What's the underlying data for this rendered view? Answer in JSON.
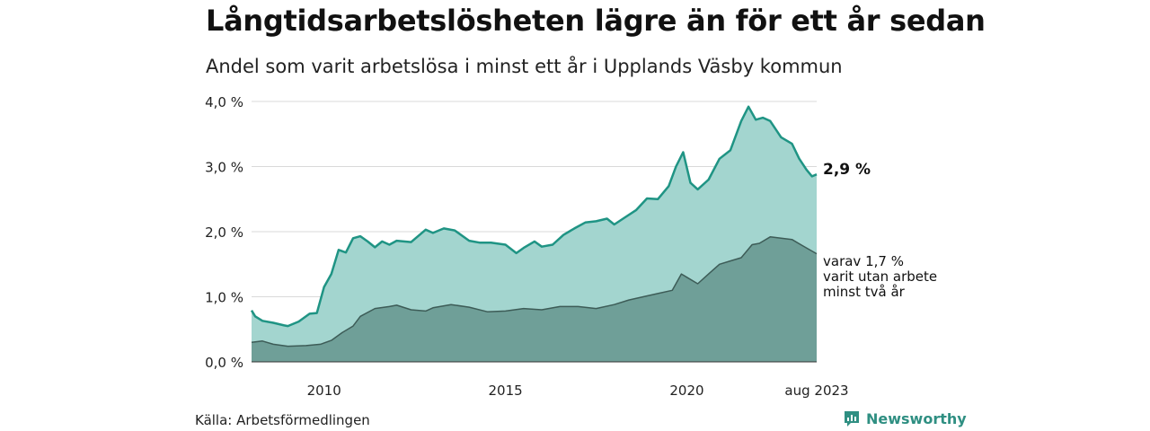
{
  "title": "Långtidsarbetslösheten lägre än för ett år sedan",
  "subtitle": "Andel som varit arbetslösa i minst ett år i Upplands Väsby kommun",
  "source": "Källa: Arbetsförmedlingen",
  "brand": "Newsworthy",
  "colors": {
    "total_fill": "#a3d5cf",
    "total_line": "#1f9484",
    "long_fill": "#6f9f98",
    "long_line": "#3d5c57",
    "grid": "#d9d9d9",
    "brand": "#2f8f82"
  },
  "chart_data": {
    "type": "area",
    "x_unit": "year",
    "xlim": [
      2008.0,
      2023.58
    ],
    "ylim": [
      0,
      4.0
    ],
    "y_ticks": [
      0,
      1,
      2,
      3,
      4
    ],
    "y_tick_labels": [
      "0,0 %",
      "1,0 %",
      "2,0 %",
      "3,0 %",
      "4,0 %"
    ],
    "x_ticks": [
      2010,
      2015,
      2020,
      2023.58
    ],
    "x_tick_labels": [
      "2010",
      "2015",
      "2020",
      "aug 2023"
    ],
    "grid": "horizontal",
    "end_label": "2,9 %",
    "sub_label_lines": [
      "varav 1,7 %",
      "varit utan arbete",
      "minst två år"
    ],
    "series": [
      {
        "key": "total",
        "x": [
          2008.0,
          2008.1,
          2008.3,
          2008.6,
          2008.9,
          2009.0,
          2009.3,
          2009.6,
          2009.8,
          2010.0,
          2010.2,
          2010.4,
          2010.6,
          2010.8,
          2011.0,
          2011.2,
          2011.4,
          2011.6,
          2011.8,
          2012.0,
          2012.4,
          2012.8,
          2013.0,
          2013.3,
          2013.6,
          2014.0,
          2014.3,
          2014.6,
          2015.0,
          2015.3,
          2015.5,
          2015.8,
          2016.0,
          2016.3,
          2016.6,
          2016.9,
          2017.2,
          2017.5,
          2017.8,
          2018.0,
          2018.3,
          2018.6,
          2018.9,
          2019.2,
          2019.5,
          2019.7,
          2019.9,
          2020.1,
          2020.3,
          2020.6,
          2020.9,
          2021.2,
          2021.5,
          2021.7,
          2021.9,
          2022.1,
          2022.3,
          2022.6,
          2022.9,
          2023.1,
          2023.3,
          2023.45,
          2023.58
        ],
        "y": [
          0.79,
          0.7,
          0.63,
          0.6,
          0.56,
          0.55,
          0.62,
          0.74,
          0.75,
          1.15,
          1.35,
          1.72,
          1.68,
          1.9,
          1.93,
          1.85,
          1.76,
          1.85,
          1.8,
          1.86,
          1.84,
          2.03,
          1.98,
          2.05,
          2.02,
          1.86,
          1.83,
          1.83,
          1.8,
          1.67,
          1.75,
          1.85,
          1.77,
          1.8,
          1.95,
          2.05,
          2.14,
          2.16,
          2.2,
          2.11,
          2.22,
          2.33,
          2.51,
          2.5,
          2.7,
          3.0,
          3.22,
          2.75,
          2.65,
          2.8,
          3.12,
          3.25,
          3.7,
          3.92,
          3.72,
          3.75,
          3.7,
          3.45,
          3.35,
          3.12,
          2.95,
          2.85,
          2.88
        ]
      },
      {
        "key": "long",
        "x": [
          2008.0,
          2008.3,
          2008.6,
          2009.0,
          2009.5,
          2009.9,
          2010.2,
          2010.5,
          2010.8,
          2011.0,
          2011.4,
          2011.8,
          2012.0,
          2012.4,
          2012.8,
          2013.0,
          2013.5,
          2014.0,
          2014.5,
          2015.0,
          2015.5,
          2016.0,
          2016.5,
          2017.0,
          2017.5,
          2018.0,
          2018.4,
          2018.8,
          2019.2,
          2019.6,
          2019.85,
          2020.0,
          2020.3,
          2020.6,
          2020.9,
          2021.2,
          2021.5,
          2021.8,
          2022.0,
          2022.3,
          2022.6,
          2022.9,
          2023.2,
          2023.58
        ],
        "y": [
          0.3,
          0.32,
          0.27,
          0.24,
          0.25,
          0.27,
          0.33,
          0.45,
          0.55,
          0.7,
          0.82,
          0.85,
          0.87,
          0.8,
          0.78,
          0.83,
          0.88,
          0.84,
          0.77,
          0.78,
          0.82,
          0.8,
          0.85,
          0.85,
          0.82,
          0.88,
          0.95,
          1.0,
          1.05,
          1.1,
          1.35,
          1.3,
          1.2,
          1.35,
          1.5,
          1.55,
          1.6,
          1.8,
          1.82,
          1.92,
          1.9,
          1.88,
          1.78,
          1.66
        ]
      }
    ]
  }
}
